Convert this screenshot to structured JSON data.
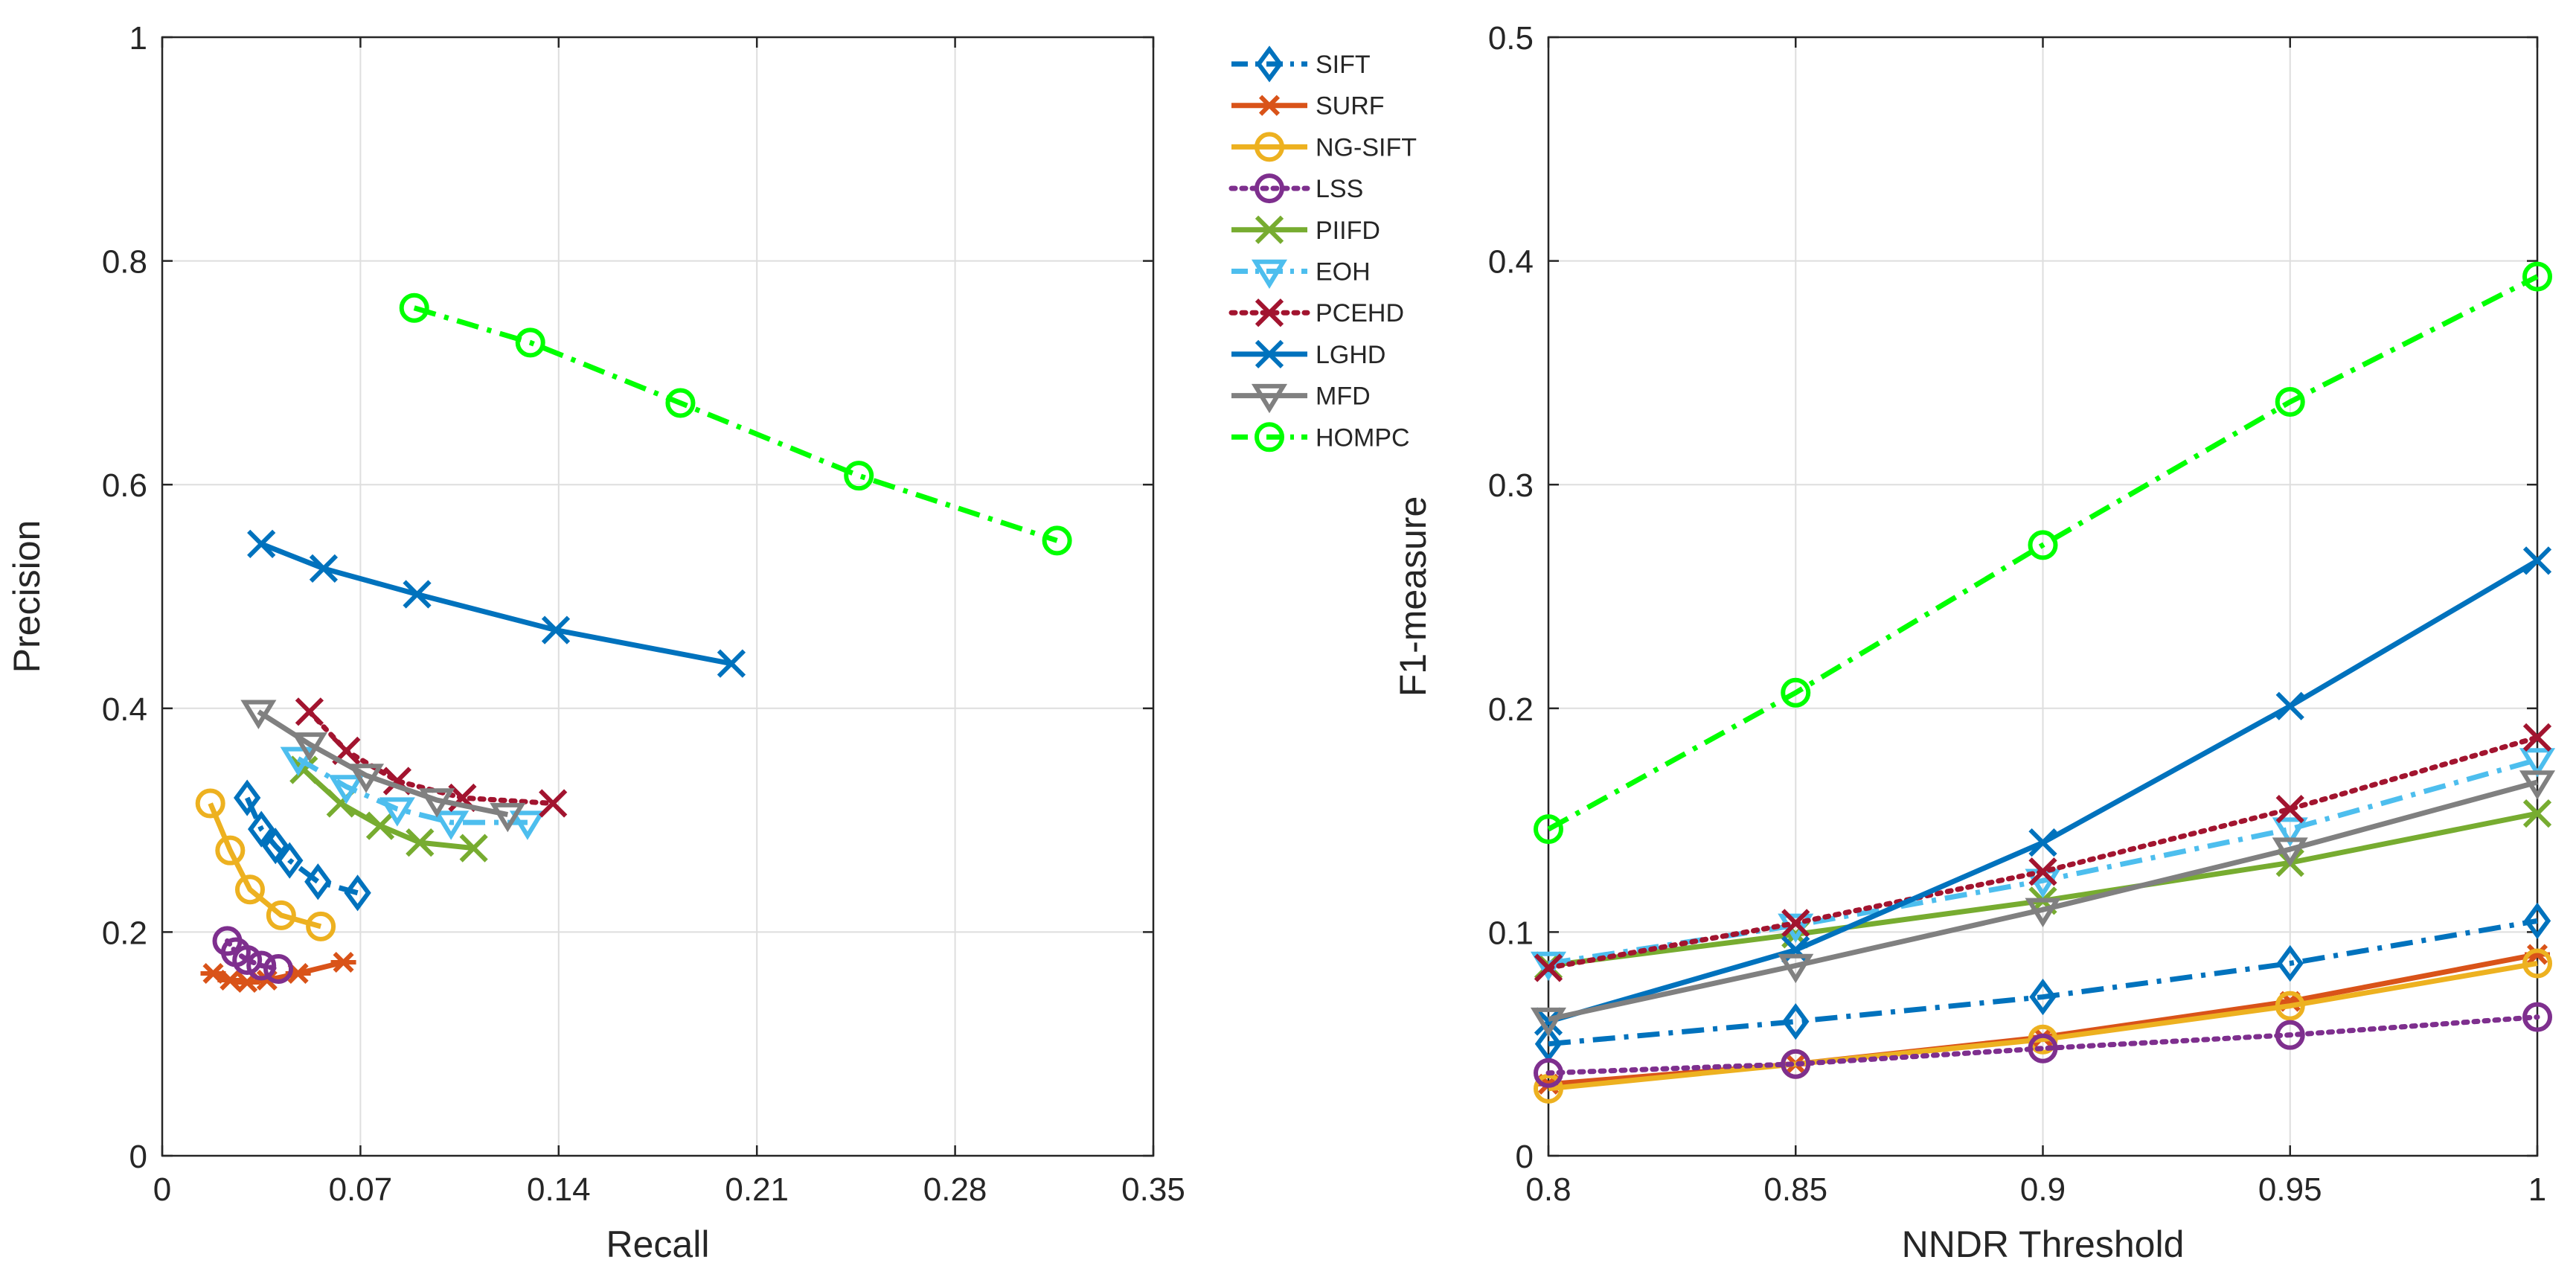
{
  "chart_data": [
    {
      "type": "line",
      "xlabel": "Recall",
      "ylabel": "Precision",
      "xlim": [
        0,
        0.35
      ],
      "ylim": [
        0,
        1
      ],
      "xticks": [
        0,
        0.07,
        0.14,
        0.21,
        0.28,
        0.35
      ],
      "xtick_labels": [
        "0",
        "0.07",
        "0.14",
        "0.21",
        "0.28",
        "0.35"
      ],
      "yticks": [
        0,
        0.2,
        0.4,
        0.6,
        0.8,
        1
      ],
      "ytick_labels": [
        "0",
        "0.2",
        "0.4",
        "0.6",
        "0.8",
        "1"
      ],
      "grid": true,
      "series": [
        {
          "name": "SIFT",
          "x": [
            0.03,
            0.035,
            0.04,
            0.045,
            0.055,
            0.069
          ],
          "y": [
            0.32,
            0.292,
            0.277,
            0.264,
            0.245,
            0.235
          ]
        },
        {
          "name": "SURF",
          "x": [
            0.018,
            0.024,
            0.03,
            0.037,
            0.048,
            0.064
          ],
          "y": [
            0.163,
            0.157,
            0.155,
            0.157,
            0.163,
            0.173
          ]
        },
        {
          "name": "NG-SIFT",
          "x": [
            0.017,
            0.024,
            0.031,
            0.042,
            0.056
          ],
          "y": [
            0.315,
            0.273,
            0.238,
            0.215,
            0.205
          ]
        },
        {
          "name": "LSS",
          "x": [
            0.023,
            0.026,
            0.03,
            0.035,
            0.041
          ],
          "y": [
            0.192,
            0.182,
            0.175,
            0.17,
            0.167
          ]
        },
        {
          "name": "PIIFD",
          "x": [
            0.05,
            0.063,
            0.077,
            0.091,
            0.11
          ],
          "y": [
            0.345,
            0.315,
            0.295,
            0.28,
            0.275
          ]
        },
        {
          "name": "EOH",
          "x": [
            0.048,
            0.065,
            0.083,
            0.102,
            0.129
          ],
          "y": [
            0.355,
            0.33,
            0.31,
            0.298,
            0.298
          ]
        },
        {
          "name": "PCEHD",
          "x": [
            0.052,
            0.065,
            0.083,
            0.106,
            0.138
          ],
          "y": [
            0.397,
            0.362,
            0.335,
            0.32,
            0.315
          ]
        },
        {
          "name": "LGHD",
          "x": [
            0.035,
            0.057,
            0.09,
            0.139,
            0.201
          ],
          "y": [
            0.547,
            0.525,
            0.502,
            0.47,
            0.44
          ]
        },
        {
          "name": "MFD",
          "x": [
            0.034,
            0.052,
            0.072,
            0.097,
            0.122
          ],
          "y": [
            0.397,
            0.368,
            0.34,
            0.318,
            0.305
          ]
        },
        {
          "name": "HOMPC",
          "x": [
            0.089,
            0.13,
            0.183,
            0.246,
            0.316
          ],
          "y": [
            0.758,
            0.727,
            0.673,
            0.608,
            0.55
          ]
        }
      ]
    },
    {
      "type": "line",
      "xlabel": "NNDR Threshold",
      "ylabel": "F1-measure",
      "xlim": [
        0.8,
        1
      ],
      "ylim": [
        0,
        0.5
      ],
      "xticks": [
        0.8,
        0.85,
        0.9,
        0.95,
        1
      ],
      "xtick_labels": [
        "0.8",
        "0.85",
        "0.9",
        "0.95",
        "1"
      ],
      "yticks": [
        0,
        0.1,
        0.2,
        0.3,
        0.4,
        0.5
      ],
      "ytick_labels": [
        "0",
        "0.1",
        "0.2",
        "0.3",
        "0.4",
        "0.5"
      ],
      "grid": true,
      "x": [
        0.8,
        0.85,
        0.9,
        0.95,
        1
      ],
      "series": [
        {
          "name": "SIFT",
          "values": [
            0.05,
            0.06,
            0.071,
            0.086,
            0.105
          ]
        },
        {
          "name": "SURF",
          "values": [
            0.032,
            0.041,
            0.053,
            0.069,
            0.09
          ]
        },
        {
          "name": "NG-SIFT",
          "values": [
            0.03,
            0.041,
            0.052,
            0.067,
            0.086
          ]
        },
        {
          "name": "LSS",
          "values": [
            0.037,
            0.041,
            0.048,
            0.054,
            0.062
          ]
        },
        {
          "name": "PIIFD",
          "values": [
            0.085,
            0.099,
            0.114,
            0.131,
            0.153
          ]
        },
        {
          "name": "EOH",
          "values": [
            0.086,
            0.103,
            0.123,
            0.146,
            0.177
          ]
        },
        {
          "name": "PCEHD",
          "values": [
            0.084,
            0.104,
            0.127,
            0.155,
            0.187
          ]
        },
        {
          "name": "LGHD",
          "values": [
            0.06,
            0.092,
            0.14,
            0.201,
            0.266
          ]
        },
        {
          "name": "MFD",
          "values": [
            0.061,
            0.085,
            0.11,
            0.137,
            0.167
          ]
        },
        {
          "name": "HOMPC",
          "values": [
            0.146,
            0.207,
            0.273,
            0.337,
            0.393
          ]
        }
      ]
    }
  ],
  "legend": {
    "position": "between-plots-top",
    "items": [
      {
        "name": "SIFT",
        "color": "#0072BD",
        "line": "dashdot",
        "marker": "diamond"
      },
      {
        "name": "SURF",
        "color": "#D95319",
        "line": "solid",
        "marker": "asterisk"
      },
      {
        "name": "NG-SIFT",
        "color": "#EDB120",
        "line": "solid",
        "marker": "circle"
      },
      {
        "name": "LSS",
        "color": "#7E2F8E",
        "line": "dotted",
        "marker": "circle"
      },
      {
        "name": "PIIFD",
        "color": "#77AC30",
        "line": "solid",
        "marker": "x"
      },
      {
        "name": "EOH",
        "color": "#4DBEEE",
        "line": "dashdot",
        "marker": "triangle-down"
      },
      {
        "name": "PCEHD",
        "color": "#A2142F",
        "line": "dotted",
        "marker": "x"
      },
      {
        "name": "LGHD",
        "color": "#0072BD",
        "line": "solid",
        "marker": "x"
      },
      {
        "name": "MFD",
        "color": "#808080",
        "line": "solid",
        "marker": "triangle-down"
      },
      {
        "name": "HOMPC",
        "color": "#00FF00",
        "line": "dashdot",
        "marker": "circle"
      }
    ]
  }
}
